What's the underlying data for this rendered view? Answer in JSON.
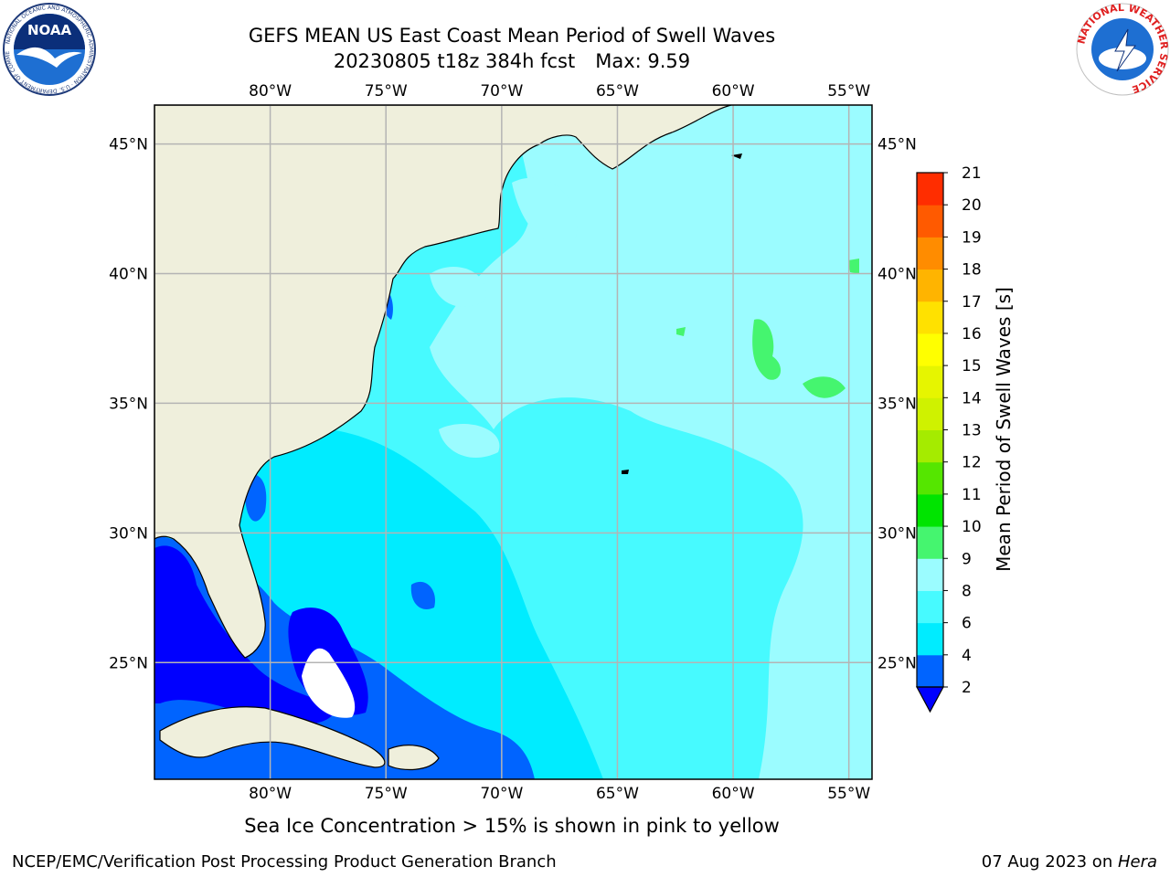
{
  "header": {
    "title_line1": "GEFS MEAN US East Coast Mean Period of Swell Waves",
    "run": "20230805 t18z 384h fcst",
    "max_label": "Max: 9.59"
  },
  "map": {
    "lon_labels": [
      "80°W",
      "75°W",
      "70°W",
      "65°W",
      "60°W",
      "55°W"
    ],
    "lat_labels": [
      "45°N",
      "40°N",
      "35°N",
      "30°N",
      "25°N"
    ],
    "lon_range": [
      -85,
      -54
    ],
    "lat_range": [
      20.5,
      46.5
    ],
    "land_color": "#efefdc",
    "grid_color": "#b4b4b4"
  },
  "colorbar": {
    "label": "Mean Period of Swell Waves [s]",
    "tick_labels": [
      "2",
      "4",
      "6",
      "8",
      "9",
      "10",
      "11",
      "12",
      "13",
      "14",
      "15",
      "16",
      "17",
      "18",
      "19",
      "20",
      "21"
    ],
    "colors": [
      "#0064ff",
      "#00ecff",
      "#47faff",
      "#9bfcff",
      "#45f56f",
      "#00e400",
      "#55e600",
      "#a5eb00",
      "#cff200",
      "#e6f500",
      "#ffff00",
      "#ffe100",
      "#ffb400",
      "#ff8c00",
      "#ff5a00",
      "#ff2d00",
      "#ff0000"
    ],
    "under_color": "#0000ff"
  },
  "note": "Sea Ice Concentration > 15% is shown in pink to yellow",
  "footer": {
    "left": "NCEP/EMC/Verification Post Processing Product Generation Branch",
    "date": "07 Aug 2023 on ",
    "host": "Hera"
  },
  "logos": {
    "left_text": "NOAA",
    "right_text": "NATIONAL WEATHER SERVICE"
  }
}
